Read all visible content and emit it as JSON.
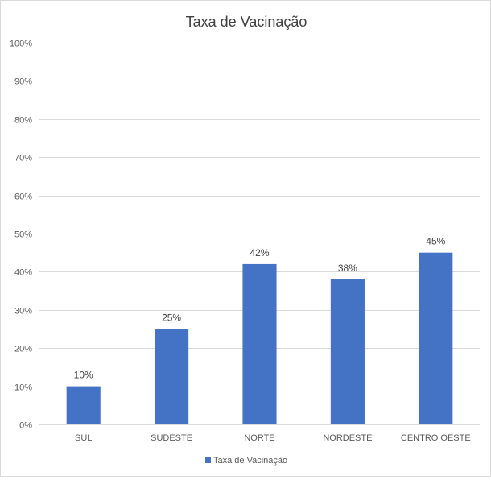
{
  "chart_data": {
    "type": "bar",
    "title": "Taxa de Vacinação",
    "categories": [
      "SUL",
      "SUDESTE",
      "NORTE",
      "NORDESTE",
      "CENTRO OESTE"
    ],
    "series": [
      {
        "name": "Taxa de Vacinação",
        "values": [
          10,
          25,
          42,
          38,
          45
        ],
        "data_labels": [
          "10%",
          "25%",
          "42%",
          "38%",
          "45%"
        ]
      }
    ],
    "y_ticks": [
      "0%",
      "10%",
      "20%",
      "30%",
      "40%",
      "50%",
      "60%",
      "70%",
      "80%",
      "90%",
      "100%"
    ],
    "ylim": [
      0,
      100
    ],
    "grid": true,
    "legend_position": "bottom",
    "colors": {
      "bar": "#4472C4",
      "grid": "#d9d9d9",
      "text": "#595959",
      "title": "#404040"
    }
  }
}
